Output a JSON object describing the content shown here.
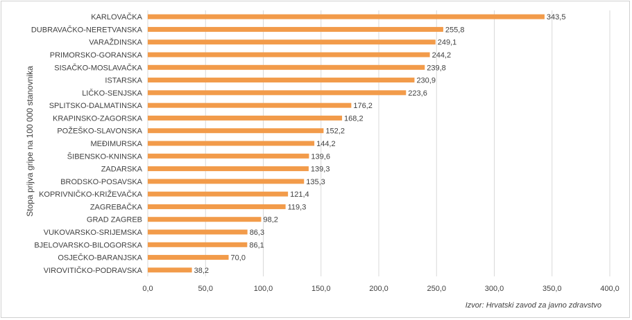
{
  "chart_data": {
    "type": "bar",
    "orientation": "horizontal",
    "categories": [
      "KARLOVAČKA",
      "DUBRAVAČKO-NERETVANSKA",
      "VARAŽDINSKA",
      "PRIMORSKO-GORANSKA",
      "SISAČKO-MOSLAVAČKA",
      "ISTARSKA",
      "LIČKO-SENJSKA",
      "SPLITSKO-DALMATINSKA",
      "KRAPINSKO-ZAGORSKA",
      "POŽEŠKO-SLAVONSKA",
      "MEĐIMURSKA",
      "ŠIBENSKO-KNINSKA",
      "ZADARSKA",
      "BRODSKO-POSAVSKA",
      "KOPRIVNIČKO-KRIŽEVAČKA",
      "ZAGREBAČKA",
      "GRAD ZAGREB",
      "VUKOVARSKO-SRIJEMSKA",
      "BJELOVARSKO-BILOGORSKA",
      "OSJEČKO-BARANJSKA",
      "VIROVITIČKO-PODRAVSKA"
    ],
    "values": [
      343.5,
      255.8,
      249.1,
      244.2,
      239.8,
      230.9,
      223.6,
      176.2,
      168.2,
      152.2,
      144.2,
      139.6,
      139.3,
      135.3,
      121.4,
      119.3,
      98.2,
      86.3,
      86.1,
      70.0,
      38.2
    ],
    "value_labels": [
      "343,5",
      "255,8",
      "249,1",
      "244,2",
      "239,8",
      "230,9",
      "223,6",
      "176,2",
      "168,2",
      "152,2",
      "144,2",
      "139,6",
      "139,3",
      "135,3",
      "121,4",
      "119,3",
      "98,2",
      "86,3",
      "86,1",
      "70,0",
      "38,2"
    ],
    "xlim": [
      0,
      400
    ],
    "x_ticks": [
      0,
      50,
      100,
      150,
      200,
      250,
      300,
      350,
      400
    ],
    "x_tick_labels": [
      "0,0",
      "50,0",
      "100,0",
      "150,0",
      "200,0",
      "250,0",
      "300,0",
      "350,0",
      "400,0"
    ],
    "ylabel": "Stopa prijva gripe na 100 000 stanovnika",
    "xlabel": "",
    "title": "",
    "grid": "vertical",
    "legend": "none",
    "bar_color": "#f29b4a",
    "grid_color": "#d9d9d9"
  },
  "source_note": "Izvor: Hrvatski zavod za javno zdravstvo"
}
